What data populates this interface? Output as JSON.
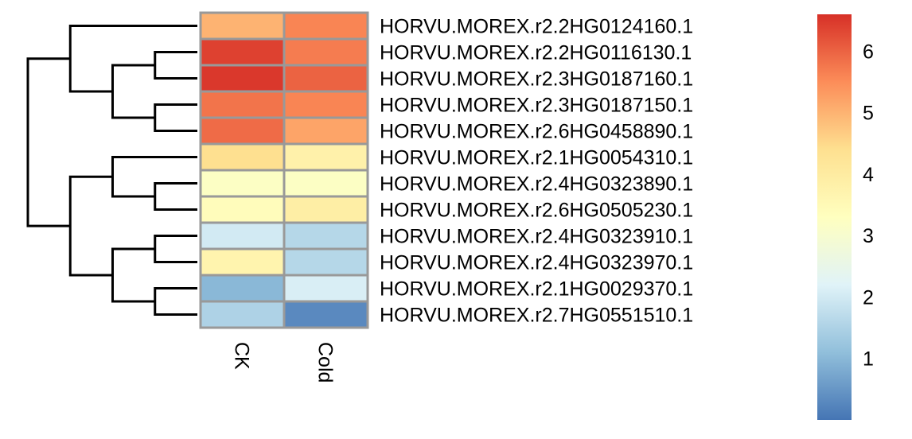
{
  "chart_data": {
    "type": "heatmap",
    "title": "",
    "xlabel": "",
    "ylabel": "",
    "columns": [
      "CK",
      "Cold"
    ],
    "rows": [
      "HORVU.MOREX.r2.2HG0124160.1",
      "HORVU.MOREX.r2.2HG0116130.1",
      "HORVU.MOREX.r2.3HG0187160.1",
      "HORVU.MOREX.r2.3HG0187150.1",
      "HORVU.MOREX.r2.6HG0458890.1",
      "HORVU.MOREX.r2.1HG0054310.1",
      "HORVU.MOREX.r2.4HG0323890.1",
      "HORVU.MOREX.r2.6HG0505230.1",
      "HORVU.MOREX.r2.4HG0323910.1",
      "HORVU.MOREX.r2.4HG0323970.1",
      "HORVU.MOREX.r2.1HG0029370.1",
      "HORVU.MOREX.r2.7HG0551510.1"
    ],
    "values": [
      [
        5.0,
        5.6
      ],
      [
        6.4,
        5.7
      ],
      [
        6.5,
        6.0
      ],
      [
        5.8,
        5.6
      ],
      [
        5.9,
        5.2
      ],
      [
        4.4,
        3.8
      ],
      [
        3.2,
        3.2
      ],
      [
        3.4,
        3.9
      ],
      [
        2.0,
        1.6
      ],
      [
        3.7,
        1.6
      ],
      [
        1.0,
        2.1
      ],
      [
        1.5,
        0.3
      ]
    ],
    "color_scale": {
      "min": 0.0,
      "max": 6.6,
      "colors": [
        "#4575b4",
        "#91bfdb",
        "#e0f3f8",
        "#ffffbf",
        "#fee090",
        "#fc8d59",
        "#d73027"
      ],
      "ticks": [
        1,
        2,
        3,
        4,
        5,
        6
      ]
    },
    "cell_border_color": "#999999",
    "row_dendrogram": true,
    "legend_position": "right"
  }
}
